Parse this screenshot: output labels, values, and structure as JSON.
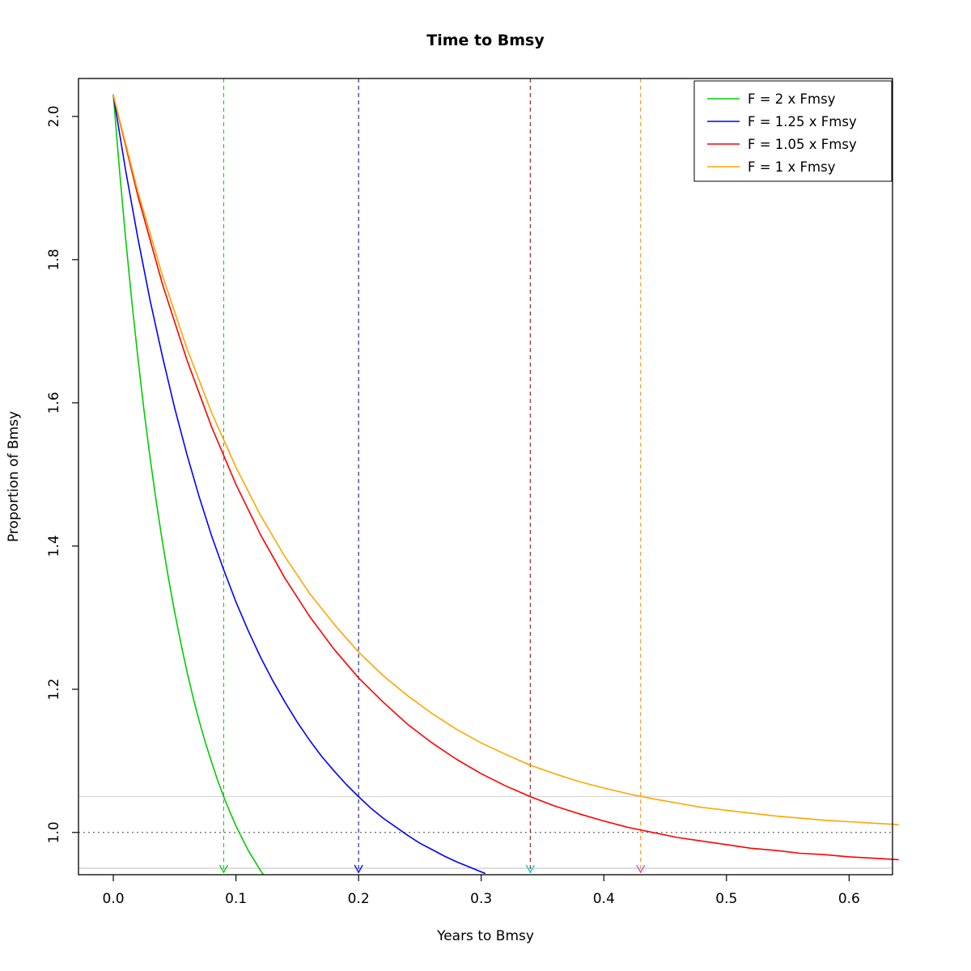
{
  "page": {
    "title": "Time to Bmsy"
  },
  "chart_data": {
    "type": "line",
    "title": "Time to Bmsy",
    "xlabel": "Years to Bmsy",
    "ylabel": "Proportion of Bmsy",
    "xlim": [
      -0.0284,
      0.6354
    ],
    "ylim": [
      0.941,
      2.053
    ],
    "grid": false,
    "xticks": {
      "values": [
        0.0,
        0.1,
        0.2,
        0.3,
        0.4,
        0.5,
        0.6
      ],
      "labels": [
        "0.0",
        "0.1",
        "0.2",
        "0.3",
        "0.4",
        "0.5",
        "0.6"
      ]
    },
    "yticks": {
      "values": [
        1.0,
        1.2,
        1.4,
        1.6,
        1.8,
        2.0
      ],
      "labels": [
        "1.0",
        "1.2",
        "1.4",
        "1.6",
        "1.8",
        "2.0"
      ]
    },
    "legend": {
      "position": "top-right",
      "entries": [
        {
          "label": "F = 2 x Fmsy",
          "color": "#00CD00"
        },
        {
          "label": "F = 1.25 x Fmsy",
          "color": "#0000FF"
        },
        {
          "label": "F = 1.05 x Fmsy",
          "color": "#FF0000"
        },
        {
          "label": "F = 1 x Fmsy",
          "color": "#FFA500"
        }
      ]
    },
    "hlines": [
      {
        "y": 1.05,
        "style": "solid",
        "color": "#d3d3d3"
      },
      {
        "y": 1.0,
        "style": "dotted",
        "color": "#444444"
      },
      {
        "y": 0.95,
        "style": "solid",
        "color": "#bdbdbd"
      }
    ],
    "vlines": [
      {
        "x": 0.09,
        "style": "dashed",
        "color": "#00CD00",
        "arrow_color": "#00CD00"
      },
      {
        "x": 0.2,
        "style": "dashed",
        "color": "#00008B",
        "arrow_color": "#0000FF"
      },
      {
        "x": 0.34,
        "style": "dashed",
        "color": "#8B0000",
        "arrow_color": "#00CDCD"
      },
      {
        "x": 0.43,
        "style": "dashed",
        "color": "#FF8C00",
        "arrow_color": "#BA55D3"
      }
    ],
    "series": [
      {
        "name": "F = 2 x Fmsy",
        "color": "#00CD00",
        "points": [
          [
            0,
            2.03
          ],
          [
            0.005,
            1.926
          ],
          [
            0.01,
            1.83
          ],
          [
            0.015,
            1.743
          ],
          [
            0.02,
            1.663
          ],
          [
            0.025,
            1.59
          ],
          [
            0.03,
            1.523
          ],
          [
            0.035,
            1.462
          ],
          [
            0.04,
            1.406
          ],
          [
            0.045,
            1.355
          ],
          [
            0.05,
            1.308
          ],
          [
            0.055,
            1.265
          ],
          [
            0.06,
            1.225
          ],
          [
            0.065,
            1.189
          ],
          [
            0.07,
            1.156
          ],
          [
            0.075,
            1.126
          ],
          [
            0.08,
            1.099
          ],
          [
            0.085,
            1.073
          ],
          [
            0.09,
            1.05
          ],
          [
            0.095,
            1.029
          ],
          [
            0.1,
            1.009
          ],
          [
            0.105,
            0.992
          ],
          [
            0.11,
            0.975
          ],
          [
            0.115,
            0.961
          ],
          [
            0.12,
            0.947
          ],
          [
            0.122,
            0.942
          ]
        ]
      },
      {
        "name": "F = 1.25 x Fmsy",
        "color": "#0000FF",
        "points": [
          [
            0,
            2.03
          ],
          [
            0.01,
            1.925
          ],
          [
            0.02,
            1.83
          ],
          [
            0.03,
            1.743
          ],
          [
            0.04,
            1.665
          ],
          [
            0.05,
            1.593
          ],
          [
            0.06,
            1.528
          ],
          [
            0.07,
            1.469
          ],
          [
            0.08,
            1.415
          ],
          [
            0.09,
            1.367
          ],
          [
            0.1,
            1.322
          ],
          [
            0.11,
            1.282
          ],
          [
            0.12,
            1.245
          ],
          [
            0.13,
            1.212
          ],
          [
            0.14,
            1.182
          ],
          [
            0.15,
            1.154
          ],
          [
            0.16,
            1.129
          ],
          [
            0.17,
            1.106
          ],
          [
            0.18,
            1.086
          ],
          [
            0.19,
            1.067
          ],
          [
            0.2,
            1.05
          ],
          [
            0.21,
            1.034
          ],
          [
            0.22,
            1.02
          ],
          [
            0.23,
            1.008
          ],
          [
            0.24,
            0.996
          ],
          [
            0.25,
            0.985
          ],
          [
            0.26,
            0.976
          ],
          [
            0.27,
            0.967
          ],
          [
            0.28,
            0.959
          ],
          [
            0.29,
            0.952
          ],
          [
            0.3,
            0.945
          ],
          [
            0.303,
            0.943
          ]
        ]
      },
      {
        "name": "F = 1.05 x Fmsy",
        "color": "#FF0000",
        "points": [
          [
            0,
            2.03
          ],
          [
            0.02,
            1.889
          ],
          [
            0.04,
            1.766
          ],
          [
            0.06,
            1.66
          ],
          [
            0.08,
            1.567
          ],
          [
            0.1,
            1.486
          ],
          [
            0.12,
            1.416
          ],
          [
            0.14,
            1.355
          ],
          [
            0.16,
            1.302
          ],
          [
            0.18,
            1.256
          ],
          [
            0.2,
            1.216
          ],
          [
            0.22,
            1.182
          ],
          [
            0.24,
            1.151
          ],
          [
            0.26,
            1.125
          ],
          [
            0.28,
            1.102
          ],
          [
            0.3,
            1.082
          ],
          [
            0.32,
            1.065
          ],
          [
            0.34,
            1.05
          ],
          [
            0.36,
            1.037
          ],
          [
            0.38,
            1.026
          ],
          [
            0.4,
            1.016
          ],
          [
            0.42,
            1.007
          ],
          [
            0.44,
            1.0
          ],
          [
            0.46,
            0.993
          ],
          [
            0.48,
            0.988
          ],
          [
            0.5,
            0.983
          ],
          [
            0.52,
            0.978
          ],
          [
            0.54,
            0.975
          ],
          [
            0.56,
            0.971
          ],
          [
            0.58,
            0.969
          ],
          [
            0.6,
            0.966
          ],
          [
            0.62,
            0.964
          ],
          [
            0.64,
            0.962
          ]
        ]
      },
      {
        "name": "F = 1 x Fmsy",
        "color": "#FFA500",
        "points": [
          [
            0,
            2.03
          ],
          [
            0.02,
            1.895
          ],
          [
            0.04,
            1.778
          ],
          [
            0.06,
            1.676
          ],
          [
            0.08,
            1.587
          ],
          [
            0.1,
            1.51
          ],
          [
            0.12,
            1.443
          ],
          [
            0.14,
            1.385
          ],
          [
            0.16,
            1.334
          ],
          [
            0.18,
            1.291
          ],
          [
            0.2,
            1.252
          ],
          [
            0.22,
            1.219
          ],
          [
            0.24,
            1.191
          ],
          [
            0.26,
            1.166
          ],
          [
            0.28,
            1.144
          ],
          [
            0.3,
            1.125
          ],
          [
            0.32,
            1.109
          ],
          [
            0.34,
            1.094
          ],
          [
            0.36,
            1.082
          ],
          [
            0.38,
            1.071
          ],
          [
            0.4,
            1.062
          ],
          [
            0.42,
            1.054
          ],
          [
            0.44,
            1.047
          ],
          [
            0.46,
            1.041
          ],
          [
            0.48,
            1.035
          ],
          [
            0.5,
            1.031
          ],
          [
            0.52,
            1.027
          ],
          [
            0.54,
            1.023
          ],
          [
            0.56,
            1.02
          ],
          [
            0.58,
            1.017
          ],
          [
            0.6,
            1.015
          ],
          [
            0.62,
            1.013
          ],
          [
            0.64,
            1.011
          ]
        ]
      }
    ]
  }
}
